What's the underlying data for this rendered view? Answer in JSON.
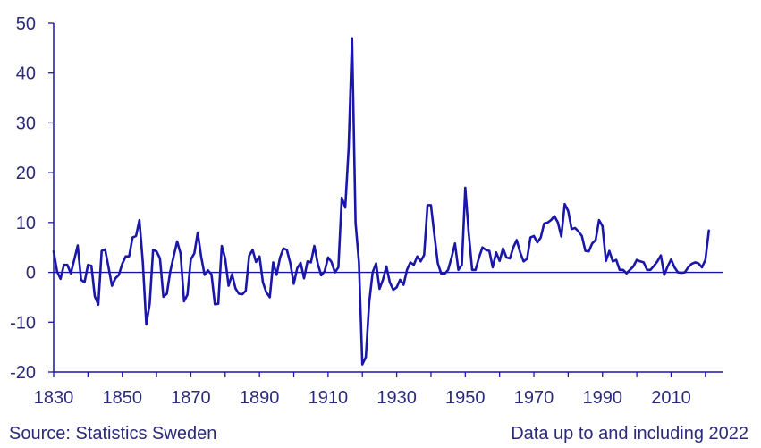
{
  "chart_data": {
    "type": "line",
    "title": "",
    "xlabel": "",
    "ylabel": "",
    "xlim": [
      1830,
      2022
    ],
    "ylim": [
      -20,
      50
    ],
    "x_ticks": [
      1830,
      1850,
      1870,
      1890,
      1910,
      1930,
      1950,
      1970,
      1990,
      2010
    ],
    "y_ticks": [
      50,
      40,
      30,
      20,
      10,
      0,
      -10,
      -20
    ],
    "grid": false,
    "series_color": "#1a17a8",
    "axis_color": "#1a17a8",
    "series": [
      {
        "values": [
          [
            1830,
            4.2
          ],
          [
            1831,
            0.2
          ],
          [
            1832,
            -1.3
          ],
          [
            1833,
            1.5
          ],
          [
            1834,
            1.5
          ],
          [
            1835,
            -0.2
          ],
          [
            1836,
            2.5
          ],
          [
            1837,
            5.4
          ],
          [
            1838,
            -1.5
          ],
          [
            1839,
            -2.0
          ],
          [
            1840,
            1.5
          ],
          [
            1841,
            1.3
          ],
          [
            1842,
            -4.8
          ],
          [
            1843,
            -6.5
          ],
          [
            1844,
            4.3
          ],
          [
            1845,
            4.6
          ],
          [
            1846,
            1.0
          ],
          [
            1847,
            -2.7
          ],
          [
            1848,
            -1.2
          ],
          [
            1849,
            -0.5
          ],
          [
            1850,
            1.7
          ],
          [
            1851,
            3.2
          ],
          [
            1852,
            3.2
          ],
          [
            1853,
            7.0
          ],
          [
            1854,
            7.3
          ],
          [
            1855,
            10.5
          ],
          [
            1856,
            2.0
          ],
          [
            1857,
            -10.5
          ],
          [
            1858,
            -6.3
          ],
          [
            1859,
            4.5
          ],
          [
            1860,
            4.2
          ],
          [
            1861,
            2.8
          ],
          [
            1862,
            -4.9
          ],
          [
            1863,
            -4.3
          ],
          [
            1864,
            0.2
          ],
          [
            1865,
            3.3
          ],
          [
            1866,
            6.2
          ],
          [
            1867,
            3.8
          ],
          [
            1868,
            -5.8
          ],
          [
            1869,
            -4.5
          ],
          [
            1870,
            2.6
          ],
          [
            1871,
            3.8
          ],
          [
            1872,
            8.0
          ],
          [
            1873,
            3.2
          ],
          [
            1874,
            -0.5
          ],
          [
            1875,
            0.4
          ],
          [
            1876,
            -0.4
          ],
          [
            1877,
            -6.4
          ],
          [
            1878,
            -6.3
          ],
          [
            1879,
            5.3
          ],
          [
            1880,
            2.8
          ],
          [
            1881,
            -2.7
          ],
          [
            1882,
            -0.4
          ],
          [
            1883,
            -3.2
          ],
          [
            1884,
            -4.3
          ],
          [
            1885,
            -4.4
          ],
          [
            1886,
            -3.7
          ],
          [
            1887,
            3.3
          ],
          [
            1888,
            4.5
          ],
          [
            1889,
            2.1
          ],
          [
            1890,
            3.2
          ],
          [
            1891,
            -2.0
          ],
          [
            1892,
            -4.0
          ],
          [
            1893,
            -5.0
          ],
          [
            1894,
            2.0
          ],
          [
            1895,
            -0.5
          ],
          [
            1896,
            3.0
          ],
          [
            1897,
            4.8
          ],
          [
            1898,
            4.5
          ],
          [
            1899,
            1.8
          ],
          [
            1900,
            -2.3
          ],
          [
            1901,
            0.8
          ],
          [
            1902,
            1.9
          ],
          [
            1903,
            -1.2
          ],
          [
            1904,
            2.2
          ],
          [
            1905,
            2.0
          ],
          [
            1906,
            5.3
          ],
          [
            1907,
            1.7
          ],
          [
            1908,
            -0.6
          ],
          [
            1909,
            0.2
          ],
          [
            1910,
            3.0
          ],
          [
            1911,
            2.1
          ],
          [
            1912,
            0.0
          ],
          [
            1913,
            1.0
          ],
          [
            1914,
            15.0
          ],
          [
            1915,
            13.0
          ],
          [
            1916,
            25.0
          ],
          [
            1917,
            47.0
          ],
          [
            1918,
            10.0
          ],
          [
            1919,
            2.0
          ],
          [
            1920,
            -18.5
          ],
          [
            1921,
            -17.0
          ],
          [
            1922,
            -6.0
          ],
          [
            1923,
            0.0
          ],
          [
            1924,
            1.8
          ],
          [
            1925,
            -3.3
          ],
          [
            1926,
            -1.5
          ],
          [
            1927,
            1.2
          ],
          [
            1928,
            -2.0
          ],
          [
            1929,
            -3.5
          ],
          [
            1930,
            -3.0
          ],
          [
            1931,
            -1.5
          ],
          [
            1932,
            -2.5
          ],
          [
            1933,
            0.5
          ],
          [
            1934,
            2.0
          ],
          [
            1935,
            1.5
          ],
          [
            1936,
            3.2
          ],
          [
            1937,
            2.2
          ],
          [
            1938,
            3.5
          ],
          [
            1939,
            13.5
          ],
          [
            1940,
            13.5
          ],
          [
            1941,
            7.5
          ],
          [
            1942,
            1.8
          ],
          [
            1943,
            -0.3
          ],
          [
            1944,
            -0.3
          ],
          [
            1945,
            0.5
          ],
          [
            1946,
            3.0
          ],
          [
            1947,
            5.8
          ],
          [
            1948,
            0.5
          ],
          [
            1949,
            1.5
          ],
          [
            1950,
            17.0
          ],
          [
            1951,
            8.0
          ],
          [
            1952,
            0.5
          ],
          [
            1953,
            0.5
          ],
          [
            1954,
            3.0
          ],
          [
            1955,
            5.0
          ],
          [
            1956,
            4.5
          ],
          [
            1957,
            4.3
          ],
          [
            1958,
            1.0
          ],
          [
            1959,
            4.0
          ],
          [
            1960,
            2.3
          ],
          [
            1961,
            4.8
          ],
          [
            1962,
            3.0
          ],
          [
            1963,
            2.8
          ],
          [
            1964,
            5.0
          ],
          [
            1965,
            6.5
          ],
          [
            1966,
            4.0
          ],
          [
            1967,
            2.2
          ],
          [
            1968,
            2.7
          ],
          [
            1969,
            7.0
          ],
          [
            1970,
            7.3
          ],
          [
            1971,
            6.0
          ],
          [
            1972,
            7.0
          ],
          [
            1973,
            9.8
          ],
          [
            1974,
            10.0
          ],
          [
            1975,
            10.5
          ],
          [
            1976,
            11.3
          ],
          [
            1977,
            10.0
          ],
          [
            1978,
            7.2
          ],
          [
            1979,
            13.7
          ],
          [
            1980,
            12.3
          ],
          [
            1981,
            8.7
          ],
          [
            1982,
            8.9
          ],
          [
            1983,
            8.2
          ],
          [
            1984,
            7.3
          ],
          [
            1985,
            4.3
          ],
          [
            1986,
            4.2
          ],
          [
            1987,
            5.8
          ],
          [
            1988,
            6.5
          ],
          [
            1989,
            10.5
          ],
          [
            1990,
            9.3
          ],
          [
            1991,
            2.3
          ],
          [
            1992,
            4.3
          ],
          [
            1993,
            2.2
          ],
          [
            1994,
            2.5
          ],
          [
            1995,
            0.5
          ],
          [
            1996,
            0.5
          ],
          [
            1997,
            -0.2
          ],
          [
            1998,
            0.5
          ],
          [
            1999,
            1.2
          ],
          [
            2000,
            2.5
          ],
          [
            2001,
            2.2
          ],
          [
            2002,
            2.0
          ],
          [
            2003,
            0.5
          ],
          [
            2004,
            0.5
          ],
          [
            2005,
            1.3
          ],
          [
            2006,
            2.2
          ],
          [
            2007,
            3.4
          ],
          [
            2008,
            -0.5
          ],
          [
            2009,
            1.2
          ],
          [
            2010,
            2.6
          ],
          [
            2011,
            1.0
          ],
          [
            2012,
            0.0
          ],
          [
            2013,
            -0.1
          ],
          [
            2014,
            0.0
          ],
          [
            2015,
            1.0
          ],
          [
            2016,
            1.7
          ],
          [
            2017,
            2.0
          ],
          [
            2018,
            1.8
          ],
          [
            2019,
            1.0
          ],
          [
            2020,
            2.5
          ],
          [
            2021,
            8.4
          ]
        ]
      }
    ]
  },
  "footer": {
    "source": "Source: Statistics Sweden",
    "note": "Data up to and including  2022"
  }
}
